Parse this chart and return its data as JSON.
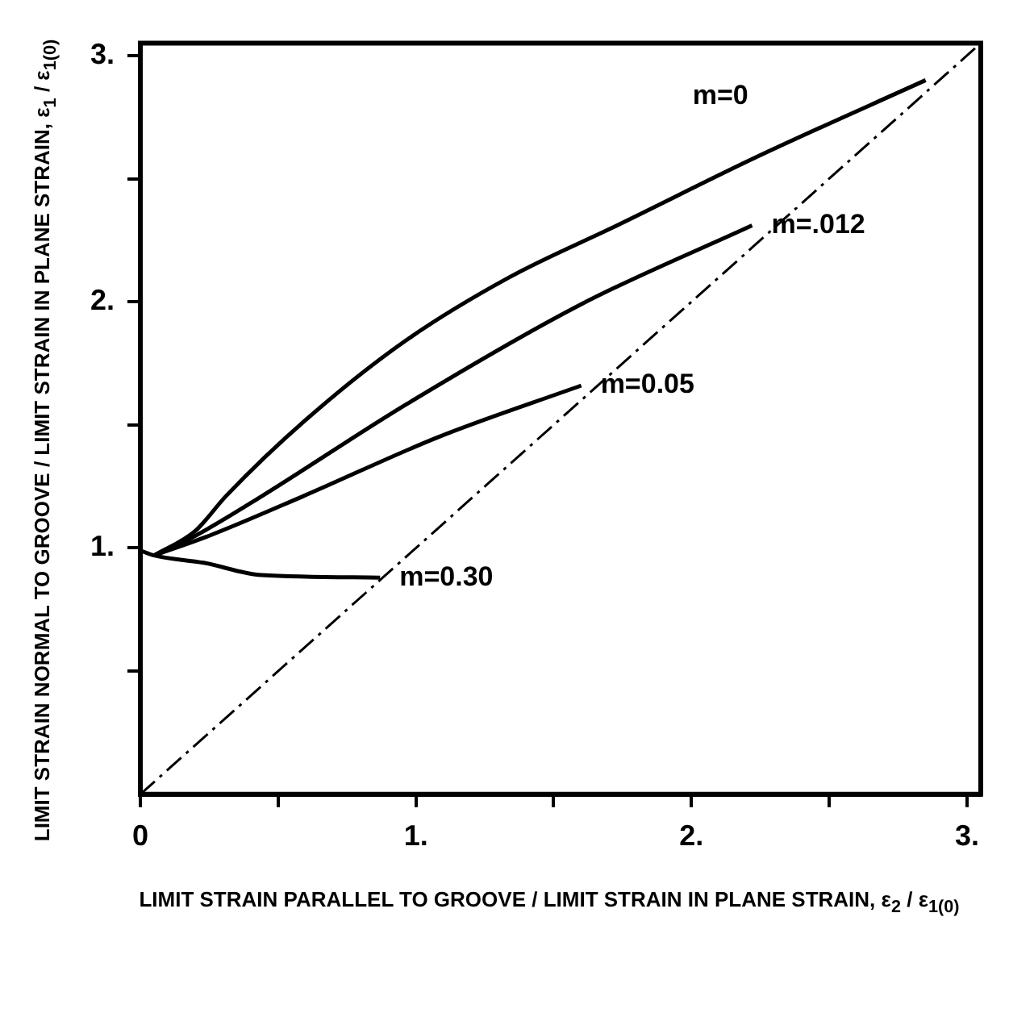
{
  "chart_data": {
    "type": "line",
    "xlabel": "LIMIT STRAIN PARALLEL TO GROOVE / LIMIT STRAIN IN PLANE STRAIN, ε$_{2}$ / ε$_{1(0)}$",
    "ylabel": "LIMIT STRAIN NORMAL TO GROOVE / LIMIT STRAIN IN PLANE STRAIN, ε$_{1}$ / ε$_{1(0)}$",
    "xlim": [
      0,
      3.05
    ],
    "ylim": [
      0,
      3.05
    ],
    "xticks": [
      {
        "value": 0,
        "label": "0"
      },
      {
        "value": 0.5,
        "label": null
      },
      {
        "value": 1,
        "label": "1."
      },
      {
        "value": 1.5,
        "label": null
      },
      {
        "value": 2,
        "label": "2."
      },
      {
        "value": 2.5,
        "label": null
      },
      {
        "value": 3,
        "label": "3."
      }
    ],
    "yticks": [
      {
        "value": 0.5,
        "label": null
      },
      {
        "value": 1,
        "label": "1."
      },
      {
        "value": 1.5,
        "label": null
      },
      {
        "value": 2,
        "label": "2."
      },
      {
        "value": 2.5,
        "label": null
      },
      {
        "value": 3,
        "label": "3."
      }
    ],
    "grid": false,
    "legend": false,
    "marker": "none",
    "series": [
      {
        "name": "m=0",
        "color": "#000000",
        "x": [
          0.05,
          0.2,
          0.31,
          0.6,
          0.96,
          1.34,
          1.73,
          2.24,
          2.85
        ],
        "values": [
          0.97,
          1.07,
          1.21,
          1.52,
          1.84,
          2.1,
          2.31,
          2.59,
          2.9
        ]
      },
      {
        "name": "m=.012",
        "color": "#000000",
        "x": [
          0.05,
          0.2,
          0.44,
          0.96,
          1.6,
          2.22
        ],
        "values": [
          0.97,
          1.05,
          1.21,
          1.58,
          1.99,
          2.31
        ]
      },
      {
        "name": "m=0.05",
        "color": "#000000",
        "x": [
          0.05,
          0.25,
          0.59,
          1.08,
          1.6
        ],
        "values": [
          0.97,
          1.05,
          1.21,
          1.45,
          1.66
        ]
      },
      {
        "name": "m=0.30",
        "color": "#000000",
        "x": [
          0,
          0.05,
          0.23,
          0.44,
          0.87
        ],
        "values": [
          0.99,
          0.97,
          0.94,
          0.89,
          0.88
        ]
      },
      {
        "color": "#000000",
        "line_style": "dashed",
        "x": [
          0,
          3.05
        ],
        "values": [
          0,
          3.05
        ]
      }
    ]
  }
}
